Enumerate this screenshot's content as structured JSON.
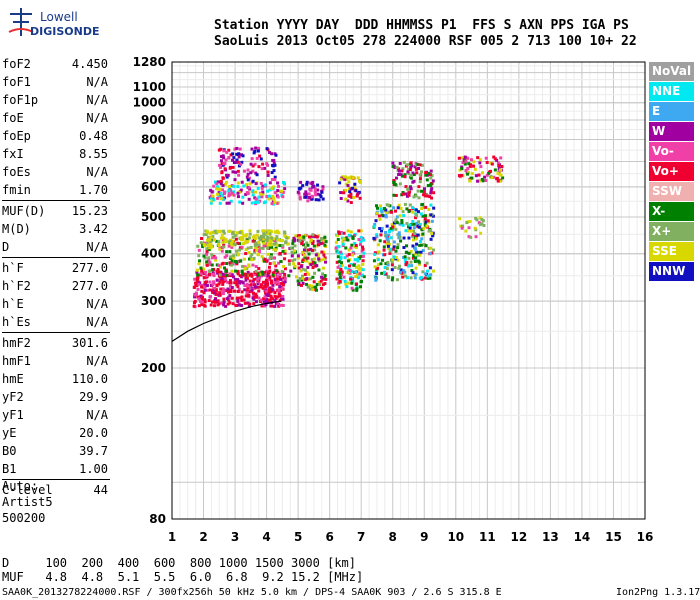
{
  "logo": {
    "line1": "Lowell",
    "line2": "DIGISONDE"
  },
  "header": {
    "line1": "Station YYYY DAY  DDD HHMMSS P1  FFS S AXN PPS IGA PS",
    "line2": "SaoLuis 2013 Oct05 278 224000 RSF 005 2 713 100 10+ 22"
  },
  "params": [
    {
      "name": "foF2",
      "value": "4.450"
    },
    {
      "name": "foF1",
      "value": "N/A"
    },
    {
      "name": "foF1p",
      "value": "N/A"
    },
    {
      "name": "foE",
      "value": "N/A"
    },
    {
      "name": "foEp",
      "value": "0.48"
    },
    {
      "name": "fxI",
      "value": "8.55"
    },
    {
      "name": "foEs",
      "value": "N/A"
    },
    {
      "name": "fmin",
      "value": "1.70"
    },
    {
      "sep": true
    },
    {
      "name": "MUF(D)",
      "value": "15.23"
    },
    {
      "name": "M(D)",
      "value": "3.42"
    },
    {
      "name": "D",
      "value": "N/A"
    },
    {
      "sep": true
    },
    {
      "name": "h`F",
      "value": "277.0"
    },
    {
      "name": "h`F2",
      "value": "277.0"
    },
    {
      "name": "h`E",
      "value": "N/A"
    },
    {
      "name": "h`Es",
      "value": "N/A"
    },
    {
      "sep": true
    },
    {
      "name": "hmF2",
      "value": "301.6"
    },
    {
      "name": "hmF1",
      "value": "N/A"
    },
    {
      "name": "hmE",
      "value": "110.0"
    },
    {
      "name": "yF2",
      "value": "29.9"
    },
    {
      "name": "yF1",
      "value": "N/A"
    },
    {
      "name": "yE",
      "value": "20.0"
    },
    {
      "name": "B0",
      "value": "39.7"
    },
    {
      "name": "B1",
      "value": "1.00"
    },
    {
      "sep": true
    },
    {
      "name": "C-level",
      "value": "44"
    }
  ],
  "notes": {
    "line1": "Auto:",
    "line2": "Artist5",
    "line3": "500200"
  },
  "dmuf": {
    "d_line": "D     100  200  400  600  800 1000 1500 3000 [km]",
    "muf_line": "MUF   4.8  4.8  5.1  5.5  6.0  6.8  9.2 15.2 [MHz]"
  },
  "footer": {
    "left": "SAA0K_2013278224000.RSF / 300fx256h 50 kHz 5.0 km / DPS-4 SAA0K 903 / 2.6 S 315.8 E",
    "right": "Ion2Png 1.3.17"
  },
  "legend": [
    {
      "label": "NoVal",
      "bg": "#a0a0a0",
      "fg": "#ffffff"
    },
    {
      "label": "NNE",
      "bg": "#00e8f0",
      "fg": "#ffffff"
    },
    {
      "label": "E",
      "bg": "#3ea8f0",
      "fg": "#ffffff"
    },
    {
      "label": "W",
      "bg": "#a000a0",
      "fg": "#ffffff"
    },
    {
      "label": "Vo-",
      "bg": "#f040a8",
      "fg": "#ffffff"
    },
    {
      "label": "Vo+",
      "bg": "#f00030",
      "fg": "#ffffff"
    },
    {
      "label": "SSW",
      "bg": "#f0b0b0",
      "fg": "#ffffff"
    },
    {
      "label": "X-",
      "bg": "#008000",
      "fg": "#ffffff"
    },
    {
      "label": "X+",
      "bg": "#80b060",
      "fg": "#ffffff"
    },
    {
      "label": "SSE",
      "bg": "#d8d800",
      "fg": "#ffffff"
    },
    {
      "label": "NNW",
      "bg": "#1010c0",
      "fg": "#ffffff"
    }
  ],
  "chart_data": {
    "type": "scatter",
    "xlim": [
      1,
      16
    ],
    "ylim": [
      80,
      1280
    ],
    "x_ticks": [
      1,
      2,
      3,
      4,
      5,
      6,
      7,
      8,
      9,
      10,
      11,
      12,
      13,
      14,
      15,
      16
    ],
    "y_ticks": [
      80,
      200,
      300,
      400,
      500,
      600,
      700,
      800,
      900,
      1000,
      1100,
      1280
    ],
    "grid": true,
    "clusters": [
      {
        "x": [
          1.7,
          4.6
        ],
        "y": [
          290,
          360
        ],
        "count": 420,
        "colors": [
          "#f00030",
          "#f040a8",
          "#a000a0",
          "#f00030"
        ]
      },
      {
        "x": [
          1.8,
          4.6
        ],
        "y": [
          350,
          440
        ],
        "count": 260,
        "colors": [
          "#008000",
          "#80b060",
          "#d8d800",
          "#f00030",
          "#f040a8"
        ]
      },
      {
        "x": [
          2.0,
          4.7
        ],
        "y": [
          420,
          460
        ],
        "count": 140,
        "colors": [
          "#d8d800",
          "#d8d800",
          "#80b060"
        ]
      },
      {
        "x": [
          4.7,
          5.9
        ],
        "y": [
          320,
          450
        ],
        "count": 180,
        "colors": [
          "#d8d800",
          "#80b060",
          "#f00030",
          "#008000",
          "#a000a0"
        ]
      },
      {
        "x": [
          6.2,
          7.1
        ],
        "y": [
          320,
          460
        ],
        "count": 160,
        "colors": [
          "#d8d800",
          "#008000",
          "#f00030",
          "#f040a8",
          "#00e8f0"
        ]
      },
      {
        "x": [
          7.4,
          9.3
        ],
        "y": [
          340,
          540
        ],
        "count": 320,
        "colors": [
          "#d8d800",
          "#008000",
          "#00e8f0",
          "#3ea8f0",
          "#f00030",
          "#1010c0",
          "#80b060"
        ]
      },
      {
        "x": [
          8.0,
          9.3
        ],
        "y": [
          560,
          700
        ],
        "count": 110,
        "colors": [
          "#008000",
          "#80b060",
          "#a000a0",
          "#f00030"
        ]
      },
      {
        "x": [
          2.2,
          4.6
        ],
        "y": [
          540,
          620
        ],
        "count": 150,
        "colors": [
          "#d8d800",
          "#a000a0",
          "#00e8f0",
          "#f040a8"
        ]
      },
      {
        "x": [
          2.5,
          4.3
        ],
        "y": [
          620,
          760
        ],
        "count": 110,
        "colors": [
          "#a000a0",
          "#f040a8",
          "#f00030",
          "#1010c0"
        ]
      },
      {
        "x": [
          5.0,
          5.8
        ],
        "y": [
          550,
          620
        ],
        "count": 50,
        "colors": [
          "#1010c0",
          "#a000a0",
          "#f040a8"
        ]
      },
      {
        "x": [
          6.3,
          7.0
        ],
        "y": [
          540,
          640
        ],
        "count": 50,
        "colors": [
          "#a000a0",
          "#f00030",
          "#1010c0",
          "#d8d800"
        ]
      },
      {
        "x": [
          10.1,
          11.5
        ],
        "y": [
          620,
          720
        ],
        "count": 90,
        "colors": [
          "#f00030",
          "#d8d800",
          "#a000a0",
          "#f040a8",
          "#008000"
        ]
      },
      {
        "x": [
          10.1,
          10.9
        ],
        "y": [
          440,
          500
        ],
        "count": 24,
        "colors": [
          "#d8d800",
          "#f040a8",
          "#80b060"
        ]
      }
    ],
    "profile_curve": {
      "x": [
        1.0,
        1.5,
        2.0,
        2.5,
        3.0,
        3.5,
        4.0,
        4.45
      ],
      "y": [
        235,
        250,
        262,
        272,
        282,
        290,
        296,
        300
      ]
    }
  }
}
